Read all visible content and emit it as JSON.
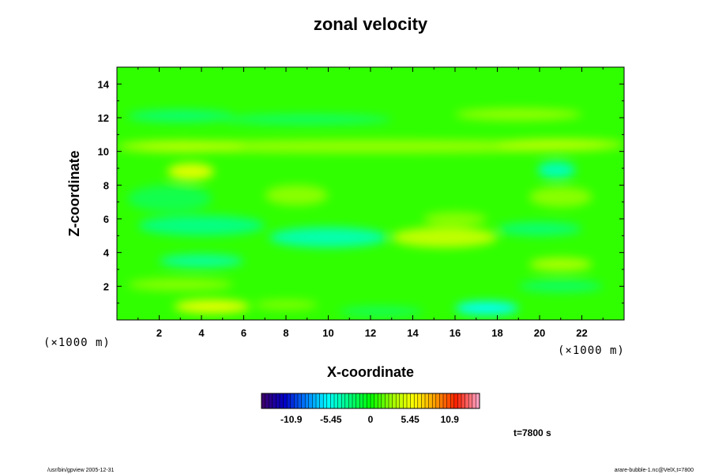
{
  "chart_data": {
    "type": "heatmap",
    "title": "zonal velocity",
    "xlabel": "X-coordinate",
    "ylabel": "Z-coordinate",
    "x_unit": "(×1000 m)",
    "y_unit": "(×1000 m)",
    "xlim": [
      0,
      24
    ],
    "ylim": [
      0,
      15
    ],
    "x_ticks": [
      "2",
      "4",
      "6",
      "8",
      "10",
      "12",
      "14",
      "16",
      "18",
      "20",
      "22"
    ],
    "y_ticks": [
      "2",
      "4",
      "6",
      "8",
      "10",
      "12",
      "14"
    ],
    "grid": false,
    "description_values": "mostly near 0; weak positive (yellow, ~3) and weak negative (cyan, ~-3) banded structures, roughly symmetric about x=12",
    "colorbar": {
      "range": [
        -15,
        15
      ],
      "ticks": [
        "-10.9",
        "-5.45",
        "0",
        "5.45",
        "10.9"
      ],
      "colors": [
        "#3a0070",
        "#0000c8",
        "#0080ff",
        "#00ffff",
        "#00ff80",
        "#00ff00",
        "#a0ff00",
        "#ffff00",
        "#ffa000",
        "#ff2000",
        "#ffa0c0"
      ]
    },
    "annotation_time": "t=7800 s"
  },
  "footer": {
    "left": "/usr/bin/gpview 2005-12-31",
    "right": "arare-bubble-1.nc@VelX,t=7800"
  }
}
